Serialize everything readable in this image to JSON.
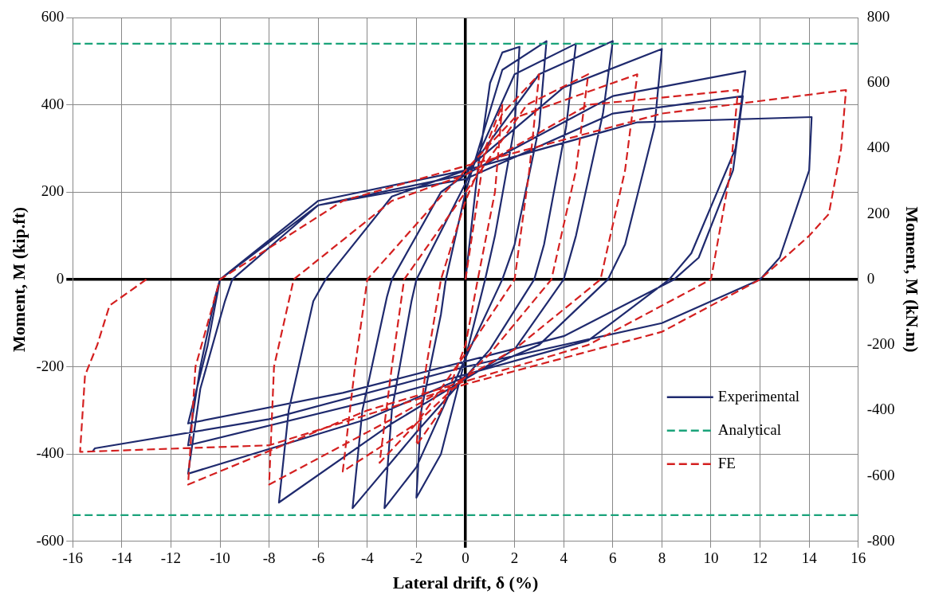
{
  "chart_data": {
    "type": "line",
    "xlabel": "Lateral drift, δ (%)",
    "ylabel": "Moment, M (kip.ft)",
    "y2label": "Moment, M (kN.m)",
    "xlim": [
      -16,
      16
    ],
    "xticks": [
      -16,
      -14,
      -12,
      -10,
      -8,
      -6,
      -4,
      -2,
      0,
      2,
      4,
      6,
      8,
      10,
      12,
      14,
      16
    ],
    "ylim": [
      -600,
      600
    ],
    "yticks": [
      -600,
      -400,
      -200,
      0,
      200,
      400,
      600
    ],
    "y2lim": [
      -800,
      800
    ],
    "y2ticks": [
      -800,
      -600,
      -400,
      -200,
      0,
      200,
      400,
      600,
      800
    ],
    "grid": true,
    "legend": "bottom right",
    "marker": "none",
    "ref_lines": [
      {
        "axis": "y",
        "value": -540,
        "color": "#1aa37a",
        "line_style": "dashed"
      }
    ],
    "series": [
      {
        "name": "Experimental",
        "color": "#1f2a6e",
        "line_style": "solid",
        "x": [
          0,
          0.5,
          1,
          1.5,
          2.2,
          2.0,
          1.2,
          0.8,
          0,
          -1,
          -2,
          -1.8,
          -1.0,
          -0.8,
          0,
          1.5,
          3.3,
          3.0,
          2.0,
          1.5,
          0,
          -2,
          -3.3,
          -3.0,
          -2.2,
          -2,
          0,
          2,
          4.5,
          4.1,
          3.2,
          2.8,
          1,
          -2,
          -4.6,
          -4.2,
          -3.2,
          -3,
          -1,
          0,
          3,
          6,
          5.6,
          4.5,
          4,
          2,
          -3,
          -7.6,
          -7.2,
          -6.2,
          -5.7,
          -3,
          0,
          4,
          8,
          7.7,
          6.5,
          5.8,
          3,
          -4,
          -11.3,
          -10.8,
          -9.8,
          -9.5,
          -6,
          0,
          6,
          11.4,
          11.0,
          9.2,
          8.3,
          5,
          -4,
          -11.3,
          -10.8,
          -10.2,
          -10,
          -6,
          0,
          6,
          11.3,
          10.9,
          9.5,
          8.5,
          4,
          -5,
          -11.3,
          -10.5,
          -10,
          -6,
          0,
          7,
          14.1,
          14.0,
          12.8,
          12,
          8,
          0,
          -8,
          -15.1,
          -15.2
        ],
        "values": [
          0,
          250,
          450,
          520,
          533,
          350,
          100,
          0,
          -180,
          -400,
          -500,
          -300,
          -80,
          0,
          200,
          480,
          546,
          350,
          80,
          0,
          -180,
          -430,
          -524,
          -300,
          -50,
          0,
          220,
          470,
          540,
          350,
          80,
          0,
          -160,
          -350,
          -524,
          -300,
          -40,
          0,
          200,
          240,
          470,
          546,
          380,
          100,
          0,
          -160,
          -330,
          -511,
          -300,
          -50,
          0,
          190,
          250,
          440,
          528,
          350,
          80,
          0,
          -150,
          -320,
          -445,
          -250,
          -50,
          0,
          170,
          240,
          420,
          477,
          300,
          60,
          0,
          -140,
          -280,
          -380,
          -200,
          -40,
          0,
          170,
          230,
          380,
          420,
          250,
          50,
          0,
          -130,
          -260,
          -330,
          -150,
          0,
          180,
          250,
          360,
          372,
          250,
          50,
          0,
          -100,
          -200,
          -320,
          -387,
          -395
        ]
      },
      {
        "name": "Analytical",
        "color": "#1aa37a",
        "line_style": "dashed",
        "x": [
          -16,
          16
        ],
        "values": [
          540,
          540
        ]
      },
      {
        "name": "FE",
        "color": "#d42020",
        "line_style": "dashed",
        "x": [
          0,
          0.8,
          1.5,
          1.2,
          0.5,
          0,
          -1,
          -2,
          -1.6,
          -1,
          0,
          1.5,
          3,
          2.6,
          2,
          0,
          -2,
          -3.5,
          -3,
          -2.5,
          0,
          2.5,
          5,
          4.5,
          3.5,
          1,
          -2,
          -5,
          -4.5,
          -4,
          -1,
          2,
          7,
          6.5,
          5.5,
          2,
          -3,
          -8,
          -7.8,
          -7,
          -3,
          0,
          5,
          11.1,
          10.8,
          10,
          5,
          -4,
          -11.3,
          -11,
          -10,
          -5,
          0,
          8,
          15.5,
          15.3,
          14.8,
          14,
          12,
          8,
          0,
          -8,
          -15.7,
          -15.5,
          -15,
          -14.5,
          -13
        ],
        "values": [
          0,
          300,
          400,
          200,
          0,
          -150,
          -300,
          -380,
          -200,
          0,
          180,
          380,
          470,
          250,
          0,
          -170,
          -330,
          -420,
          -200,
          0,
          200,
          400,
          470,
          250,
          0,
          -170,
          -330,
          -440,
          -200,
          0,
          190,
          370,
          470,
          250,
          0,
          -160,
          -320,
          -470,
          -200,
          0,
          180,
          240,
          400,
          434,
          250,
          0,
          -150,
          -300,
          -470,
          -200,
          0,
          180,
          260,
          380,
          434,
          300,
          150,
          100,
          0,
          -120,
          -240,
          -380,
          -395,
          -220,
          -150,
          -60,
          0
        ]
      }
    ]
  }
}
